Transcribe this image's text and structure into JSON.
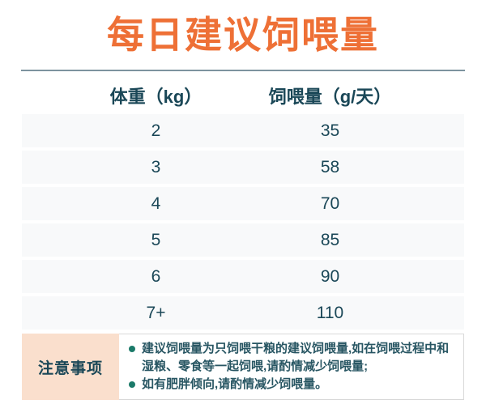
{
  "title": "每日建议饲喂量",
  "table": {
    "headers": [
      "体重（kg）",
      "饲喂量（g/天）"
    ],
    "rows": [
      {
        "weight": "2",
        "amount": "35"
      },
      {
        "weight": "3",
        "amount": "58"
      },
      {
        "weight": "4",
        "amount": "70"
      },
      {
        "weight": "5",
        "amount": "85"
      },
      {
        "weight": "6",
        "amount": "90"
      },
      {
        "weight": "7+",
        "amount": "110"
      }
    ]
  },
  "notes": {
    "label": "注意事项",
    "items": [
      "建议饲喂量为只饲喂干粮的建议饲喂量,如在饲喂过程中和湿粮、零食等一起饲喂,请酌情减少饲喂量;",
      "如有肥胖倾向,请酌情减少饲喂量。"
    ]
  },
  "chart_data": {
    "type": "table",
    "title": "每日建议饲喂量",
    "columns": [
      "体重（kg）",
      "饲喂量（g/天）"
    ],
    "categories": [
      "2",
      "3",
      "4",
      "5",
      "6",
      "7+"
    ],
    "values": [
      35,
      58,
      70,
      85,
      90,
      110
    ],
    "xlabel": "体重（kg）",
    "ylabel": "饲喂量（g/天）"
  },
  "colors": {
    "title_orange": "#ee7036",
    "divider_slate": "#7d939f",
    "text_dark_teal": "#1a4757",
    "row_background": "#f8f9fa",
    "notes_label_peach": "#fadfcd",
    "bullet_teal": "#1b7a69",
    "notes_border_gray": "#d9d9d9"
  }
}
